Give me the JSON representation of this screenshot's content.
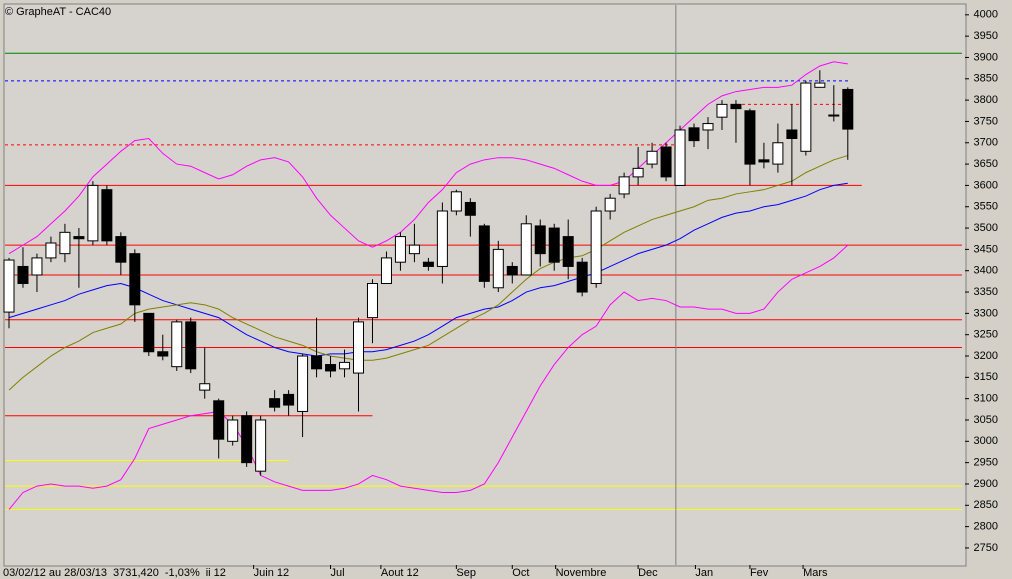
{
  "chart_data": {
    "type": "candlestick",
    "title": "© GrapheAT - CAC40",
    "status": [
      "03/02/12 au 28/03/13",
      "3731,420",
      "-1,03%",
      "ii 12"
    ],
    "categories": [
      null,
      null,
      null,
      null,
      null,
      null,
      null,
      null,
      null,
      null,
      null,
      null,
      null,
      null,
      null,
      null,
      null,
      null,
      null,
      null,
      null,
      null,
      null,
      null,
      null,
      null,
      null,
      null,
      null,
      null,
      null,
      null,
      null,
      null,
      null,
      null,
      null,
      null,
      null,
      null,
      null,
      null,
      null,
      null,
      null,
      null,
      null,
      null,
      null,
      null,
      null,
      null,
      null,
      null,
      null,
      null,
      null,
      null,
      null,
      null,
      null
    ],
    "open": [
      3303,
      3410,
      3390,
      3430,
      3440,
      3480,
      3470,
      3590,
      3480,
      3440,
      3300,
      3210,
      3175,
      3280,
      3120,
      3095,
      3000,
      3060,
      2930,
      3100,
      3110,
      3070,
      3200,
      3180,
      3170,
      3160,
      3290,
      3370,
      3420,
      3440,
      3420,
      3410,
      3540,
      3560,
      3505,
      3360,
      3410,
      3390,
      3505,
      3500,
      3480,
      3420,
      3370,
      3540,
      3580,
      3620,
      3650,
      3690,
      3600,
      3735,
      3730,
      3760,
      3790,
      3775,
      3660,
      3650,
      3730,
      3680,
      3830,
      3765,
      3825
    ],
    "high": [
      3430,
      3455,
      3440,
      3480,
      3510,
      3500,
      3610,
      3600,
      3490,
      3450,
      3300,
      3250,
      3285,
      3290,
      3220,
      3100,
      3060,
      3070,
      3060,
      3120,
      3120,
      3205,
      3290,
      3200,
      3215,
      3290,
      3380,
      3445,
      3490,
      3510,
      3430,
      3560,
      3590,
      3570,
      3510,
      3470,
      3420,
      3530,
      3520,
      3510,
      3520,
      3430,
      3550,
      3580,
      3630,
      3690,
      3700,
      3700,
      3740,
      3745,
      3760,
      3800,
      3800,
      3780,
      3700,
      3745,
      3790,
      3845,
      3870,
      3835,
      3830
    ],
    "low": [
      3265,
      3360,
      3350,
      3420,
      3420,
      3360,
      3460,
      3460,
      3390,
      3280,
      3200,
      3190,
      3165,
      3160,
      3100,
      2960,
      2990,
      2940,
      2920,
      3070,
      3060,
      3010,
      3150,
      3150,
      3150,
      3070,
      3230,
      3370,
      3400,
      3420,
      3400,
      3370,
      3530,
      3480,
      3360,
      3350,
      3370,
      3390,
      3410,
      3400,
      3380,
      3340,
      3360,
      3520,
      3570,
      3600,
      3640,
      3610,
      3600,
      3690,
      3685,
      3730,
      3700,
      3600,
      3640,
      3630,
      3600,
      3670,
      3830,
      3750,
      3660
    ],
    "close": [
      3425,
      3370,
      3430,
      3465,
      3490,
      3475,
      3600,
      3470,
      3420,
      3320,
      3210,
      3200,
      3280,
      3170,
      3135,
      3005,
      3050,
      2950,
      3050,
      3080,
      3085,
      3200,
      3170,
      3165,
      3185,
      3280,
      3370,
      3430,
      3480,
      3460,
      3410,
      3540,
      3585,
      3530,
      3375,
      3450,
      3390,
      3510,
      3440,
      3420,
      3410,
      3350,
      3540,
      3570,
      3620,
      3640,
      3680,
      3620,
      3730,
      3705,
      3745,
      3790,
      3780,
      3650,
      3655,
      3700,
      3710,
      3840,
      3840,
      3765,
      3732
    ],
    "up_color": "#ffffff",
    "down_color": "#000000",
    "series": [
      {
        "name": "bollinger-upper",
        "color": "#ff00ff",
        "values": [
          3440,
          3460,
          3480,
          3510,
          3540,
          3575,
          3620,
          3650,
          3680,
          3705,
          3710,
          3675,
          3650,
          3645,
          3630,
          3615,
          3625,
          3645,
          3660,
          3665,
          3655,
          3620,
          3570,
          3530,
          3500,
          3470,
          3455,
          3470,
          3490,
          3520,
          3560,
          3590,
          3630,
          3650,
          3660,
          3665,
          3665,
          3660,
          3650,
          3640,
          3625,
          3610,
          3600,
          3600,
          3610,
          3640,
          3670,
          3700,
          3730,
          3760,
          3790,
          3810,
          3820,
          3825,
          3830,
          3830,
          3835,
          3860,
          3880,
          3890,
          3885
        ]
      },
      {
        "name": "bollinger-lower",
        "color": "#ff00ff",
        "values": [
          2840,
          2880,
          2895,
          2900,
          2895,
          2895,
          2890,
          2895,
          2910,
          2960,
          3030,
          3040,
          3050,
          3060,
          3065,
          3070,
          3040,
          2990,
          2920,
          2905,
          2895,
          2885,
          2885,
          2885,
          2890,
          2900,
          2920,
          2910,
          2895,
          2890,
          2885,
          2880,
          2880,
          2885,
          2900,
          2950,
          3010,
          3070,
          3130,
          3180,
          3220,
          3250,
          3270,
          3320,
          3350,
          3330,
          3335,
          3330,
          3315,
          3315,
          3310,
          3310,
          3300,
          3300,
          3310,
          3350,
          3380,
          3395,
          3410,
          3430,
          3460
        ]
      },
      {
        "name": "ma-short",
        "color": "#0000ff",
        "values": [
          3290,
          3300,
          3310,
          3320,
          3330,
          3345,
          3355,
          3365,
          3370,
          3360,
          3345,
          3330,
          3320,
          3310,
          3300,
          3290,
          3270,
          3250,
          3235,
          3220,
          3210,
          3205,
          3200,
          3205,
          3205,
          3210,
          3210,
          3215,
          3225,
          3235,
          3250,
          3270,
          3290,
          3300,
          3310,
          3315,
          3330,
          3350,
          3360,
          3365,
          3375,
          3385,
          3395,
          3410,
          3425,
          3440,
          3450,
          3460,
          3475,
          3495,
          3510,
          3525,
          3535,
          3540,
          3550,
          3555,
          3565,
          3575,
          3590,
          3600,
          3605
        ]
      },
      {
        "name": "ma-long",
        "color": "#808000",
        "values": [
          3120,
          3150,
          3175,
          3200,
          3220,
          3235,
          3255,
          3265,
          3275,
          3300,
          3310,
          3315,
          3320,
          3325,
          3320,
          3310,
          3290,
          3275,
          3260,
          3245,
          3235,
          3225,
          3210,
          3200,
          3195,
          3190,
          3190,
          3195,
          3205,
          3215,
          3225,
          3245,
          3265,
          3285,
          3300,
          3320,
          3350,
          3380,
          3405,
          3420,
          3430,
          3435,
          3450,
          3470,
          3490,
          3505,
          3520,
          3530,
          3540,
          3550,
          3565,
          3570,
          3580,
          3585,
          3590,
          3600,
          3610,
          3630,
          3645,
          3660,
          3670
        ]
      }
    ],
    "reference_lines": [
      {
        "value": 3910,
        "color": "#008000",
        "style": "solid"
      },
      {
        "value": 3845,
        "color": "#0000ff",
        "style": "dashed",
        "x_range": [
          -1,
          60.2
        ]
      },
      {
        "value": 3790,
        "color": "#ff0000",
        "style": "dashed",
        "x_range": [
          52,
          60.2
        ]
      },
      {
        "value": 3695,
        "color": "#ff0000",
        "style": "dashed",
        "x_range": [
          -1,
          48
        ]
      },
      {
        "value": 3600,
        "color": "#ff0000",
        "style": "solid",
        "x_range": [
          -1,
          61
        ]
      },
      {
        "value": 3460,
        "color": "#ff0000",
        "style": "solid"
      },
      {
        "value": 3390,
        "color": "#ff0000",
        "style": "solid"
      },
      {
        "value": 3285,
        "color": "#ff0000",
        "style": "solid"
      },
      {
        "value": 3220,
        "color": "#ff0000",
        "style": "solid"
      },
      {
        "value": 3060,
        "color": "#ff0000",
        "style": "solid",
        "x_range": [
          -1,
          26
        ]
      },
      {
        "value": 2955,
        "color": "#ffff00",
        "style": "solid",
        "x_range": [
          -1,
          20
        ]
      },
      {
        "value": 2895,
        "color": "#ffff00",
        "style": "solid"
      },
      {
        "value": 2840,
        "color": "#ffff00",
        "style": "solid"
      }
    ],
    "cursor_x": 47.7,
    "xticks": [
      {
        "value": 17.5,
        "label": "Juin 12"
      },
      {
        "value": 23,
        "label": "Jul"
      },
      {
        "value": 26.6,
        "label": "Aout 12"
      },
      {
        "value": 32,
        "label": "Sep"
      },
      {
        "value": 36,
        "label": "Oct"
      },
      {
        "value": 39.1,
        "label": "Novembre"
      },
      {
        "value": 45,
        "label": "Dec"
      },
      {
        "value": 49.1,
        "label": "Jan"
      },
      {
        "value": 53,
        "label": "Fev"
      },
      {
        "value": 56.8,
        "label": "Mars"
      }
    ],
    "ylim": [
      2710,
      4023
    ],
    "yticks": [
      2750,
      2800,
      2850,
      2900,
      2950,
      3000,
      3050,
      3100,
      3150,
      3200,
      3250,
      3300,
      3350,
      3400,
      3450,
      3500,
      3550,
      3600,
      3650,
      3700,
      3750,
      3800,
      3850,
      3900,
      3950,
      4000
    ]
  }
}
